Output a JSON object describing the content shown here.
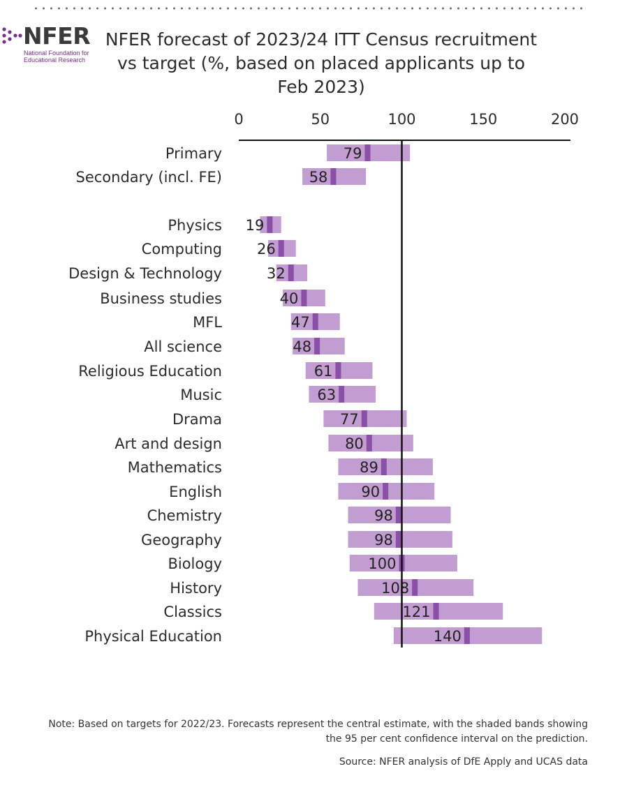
{
  "logo": {
    "word": "NFER",
    "subtitle_line1": "National Foundation for",
    "subtitle_line2": "Educational Research",
    "icon": "dots-logo-icon",
    "color": "#7a2d8a"
  },
  "note": "Note: Based on targets for 2022/23. Forecasts represent the central estimate, with the shaded bands showing the 95 per cent confidence interval on the prediction.",
  "source": "Source: NFER analysis of DfE Apply and UCAS data",
  "chart_data": {
    "type": "bar",
    "title": "NFER forecast of 2023/24 ITT Census recruitment vs target (%, based on placed applicants up to Feb 2023)",
    "xlim": [
      0,
      200
    ],
    "xticks": [
      "0",
      "50",
      "100",
      "150",
      "200"
    ],
    "xtick_values": [
      0,
      50,
      100,
      150,
      200
    ],
    "reference_line": 100,
    "band_color": "#c29dd1",
    "marker_color": "#8a4fa6",
    "rows": [
      {
        "label": "Primary",
        "value": 79,
        "low": 54,
        "high": 105
      },
      {
        "label": "Secondary (incl. FE)",
        "value": 58,
        "low": 39,
        "high": 78
      },
      {
        "label": "Physics",
        "value": 19,
        "low": 13,
        "high": 26
      },
      {
        "label": "Computing",
        "value": 26,
        "low": 18,
        "high": 35
      },
      {
        "label": "Design & Technology",
        "value": 32,
        "low": 23,
        "high": 42
      },
      {
        "label": "Business studies",
        "value": 40,
        "low": 27,
        "high": 53
      },
      {
        "label": "MFL",
        "value": 47,
        "low": 32,
        "high": 62
      },
      {
        "label": "All science",
        "value": 48,
        "low": 33,
        "high": 65
      },
      {
        "label": "Religious Education",
        "value": 61,
        "low": 41,
        "high": 82
      },
      {
        "label": "Music",
        "value": 63,
        "low": 43,
        "high": 84
      },
      {
        "label": "Drama",
        "value": 77,
        "low": 52,
        "high": 103
      },
      {
        "label": "Art and design",
        "value": 80,
        "low": 55,
        "high": 107
      },
      {
        "label": "Mathematics",
        "value": 89,
        "low": 61,
        "high": 119
      },
      {
        "label": "English",
        "value": 90,
        "low": 61,
        "high": 120
      },
      {
        "label": "Chemistry",
        "value": 98,
        "low": 67,
        "high": 130
      },
      {
        "label": "Geography",
        "value": 98,
        "low": 67,
        "high": 131
      },
      {
        "label": "Biology",
        "value": 100,
        "low": 68,
        "high": 134
      },
      {
        "label": "History",
        "value": 108,
        "low": 73,
        "high": 144
      },
      {
        "label": "Classics",
        "value": 121,
        "low": 83,
        "high": 162
      },
      {
        "label": "Physical Education",
        "value": 140,
        "low": 95,
        "high": 186
      }
    ]
  }
}
